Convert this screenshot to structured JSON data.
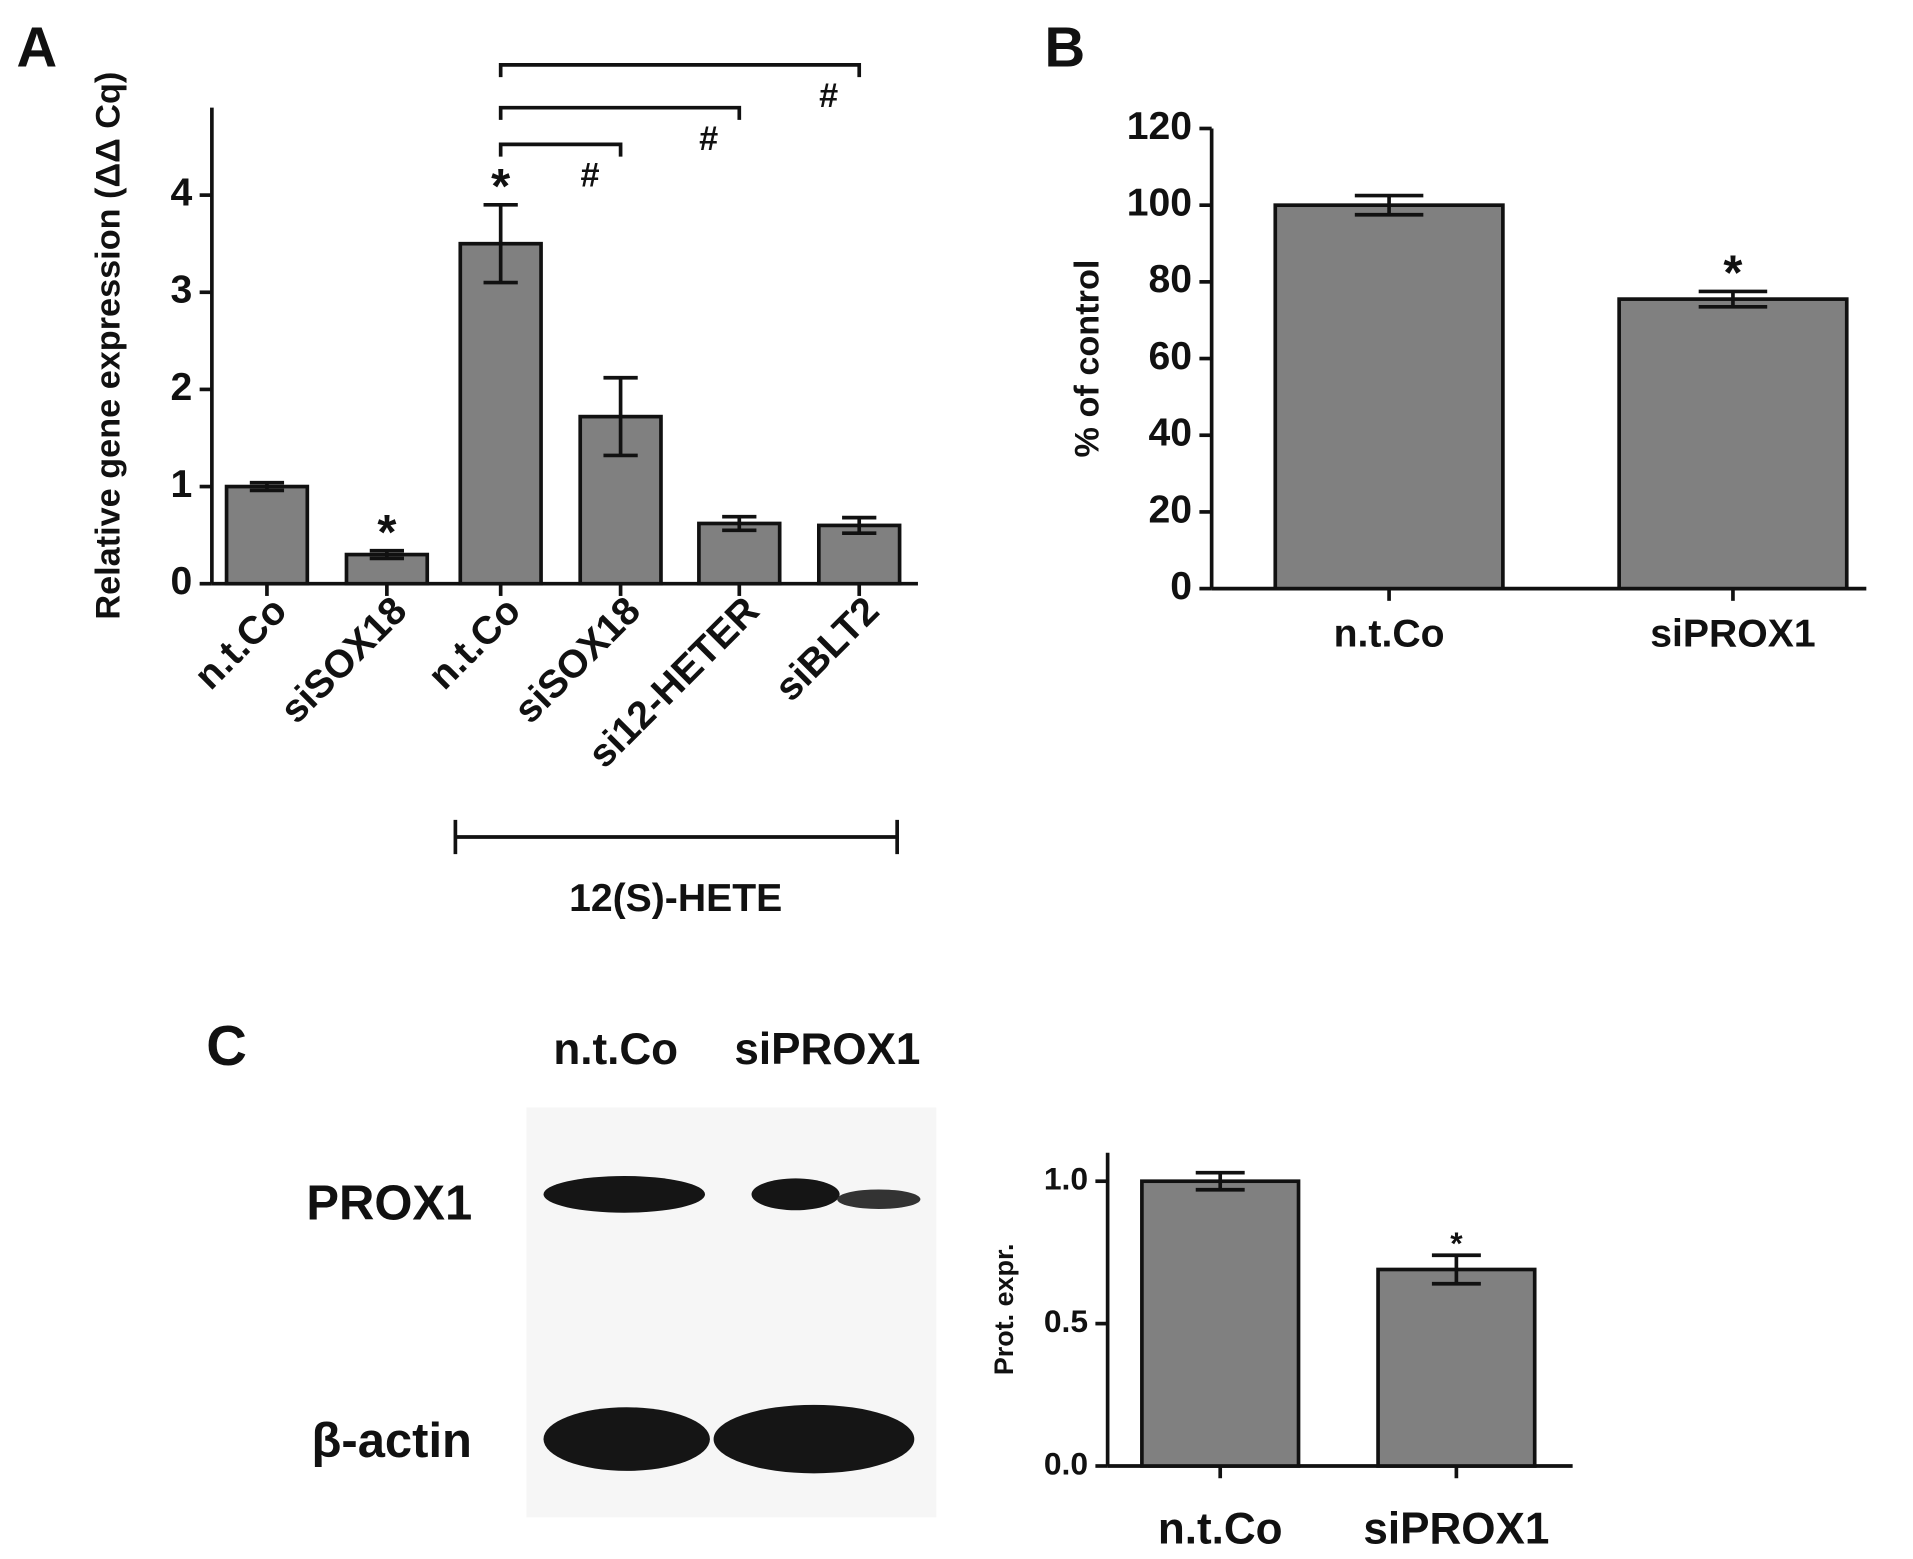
{
  "chart_data": [
    {
      "type": "bar",
      "panel": "A",
      "y_label": "Relative gene expression (ΔΔ Cq)",
      "categories": [
        "n.t.Co",
        "siSOX18",
        "n.t.Co",
        "siSOX18",
        "si12-HETER",
        "siBLT2"
      ],
      "values": [
        1.0,
        0.3,
        3.5,
        1.72,
        0.62,
        0.6
      ],
      "errors": [
        0.04,
        0.04,
        0.4,
        0.4,
        0.07,
        0.08
      ],
      "significance": [
        null,
        "*",
        "*",
        null,
        null,
        null
      ],
      "comparisons": [
        null,
        null,
        null,
        "#",
        "#",
        "#"
      ],
      "group_label": "12(S)-HETE",
      "color": "#808080",
      "ylim": [
        0,
        4.9
      ],
      "yticks": [
        0,
        1,
        2,
        3,
        4
      ]
    },
    {
      "type": "bar",
      "panel": "B",
      "y_label": "% of control",
      "categories": [
        "n.t.Co",
        "siPROX1"
      ],
      "values": [
        100,
        75.5
      ],
      "errors": [
        2.5,
        2
      ],
      "significance": [
        null,
        "*"
      ],
      "color": "#808080",
      "ylim": [
        0,
        120
      ],
      "yticks": [
        0,
        20,
        40,
        60,
        80,
        100,
        120
      ]
    },
    {
      "type": "bar",
      "panel": "C",
      "y_label": "Prot. expr.",
      "categories": [
        "n.t.Co",
        "siPROX1"
      ],
      "values": [
        1.0,
        0.69
      ],
      "errors": [
        0.03,
        0.05
      ],
      "significance": [
        null,
        "*"
      ],
      "color": "#808080",
      "ylim": [
        0,
        1.1
      ],
      "yticks": [
        {
          "value": 0,
          "label": "0.0"
        },
        {
          "value": 0.5,
          "label": "0.5"
        },
        {
          "value": 1,
          "label": "1.0"
        }
      ]
    }
  ],
  "blot": {
    "lanes": [
      "n.t.Co",
      "siPROX1"
    ],
    "bands": [
      "PROX1",
      "β-actin"
    ]
  }
}
